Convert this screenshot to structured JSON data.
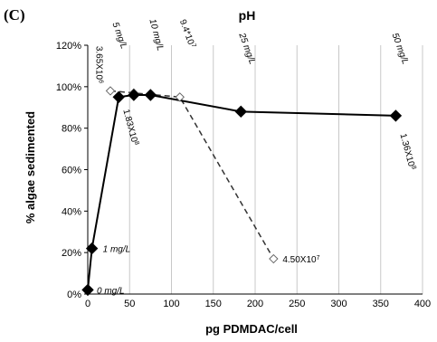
{
  "panel_label": "(C)",
  "chart_data": {
    "type": "scatter",
    "title": "pH",
    "xlabel": "pg PDMDAC/cell",
    "ylabel": "% algae sedimented",
    "xlim": [
      0,
      400
    ],
    "ylim": [
      0,
      120
    ],
    "x_ticks": [
      "0",
      "50",
      "100",
      "150",
      "200",
      "250",
      "300",
      "350",
      "400"
    ],
    "y_ticks": [
      "0%",
      "20%",
      "40%",
      "60%",
      "80%",
      "100%",
      "120%"
    ],
    "grid": "vertical",
    "series": [
      {
        "style": "solid",
        "marker": "filled-diamond",
        "points": [
          {
            "x": 0,
            "y": 2
          },
          {
            "x": 5,
            "y": 22
          },
          {
            "x": 37,
            "y": 95
          },
          {
            "x": 55,
            "y": 96
          },
          {
            "x": 75,
            "y": 96
          },
          {
            "x": 183,
            "y": 88
          },
          {
            "x": 368,
            "y": 86
          }
        ]
      },
      {
        "style": "dashed",
        "marker": "open-diamond",
        "points": [
          {
            "x": 27,
            "y": 98
          },
          {
            "x": 55,
            "y": 97
          },
          {
            "x": 110,
            "y": 95
          },
          {
            "x": 222,
            "y": 17
          }
        ]
      }
    ],
    "annotations": [
      {
        "text": "0 mg/L",
        "x": 0,
        "y": 2
      },
      {
        "text": "1 mg/L",
        "x": 5,
        "y": 22
      },
      {
        "text": "3.65X10",
        "sup": "6",
        "x": 5,
        "y": 100
      },
      {
        "text": "5 mg/L",
        "x": 37,
        "y": 100
      },
      {
        "text": "1.83X10",
        "sup": "8",
        "x": 37,
        "y": 94
      },
      {
        "text": "10 mg/L",
        "x": 75,
        "y": 100
      },
      {
        "text": "9.4*10",
        "sup": "7",
        "x": 110,
        "y": 100
      },
      {
        "text": "25 mg/L",
        "x": 183,
        "y": 100
      },
      {
        "text": "4.50X10",
        "sup": "7",
        "x": 222,
        "y": 17
      },
      {
        "text": "50 mg/L",
        "x": 368,
        "y": 100
      },
      {
        "text": "1.36X10",
        "sup": "8",
        "x": 368,
        "y": 84
      }
    ]
  }
}
